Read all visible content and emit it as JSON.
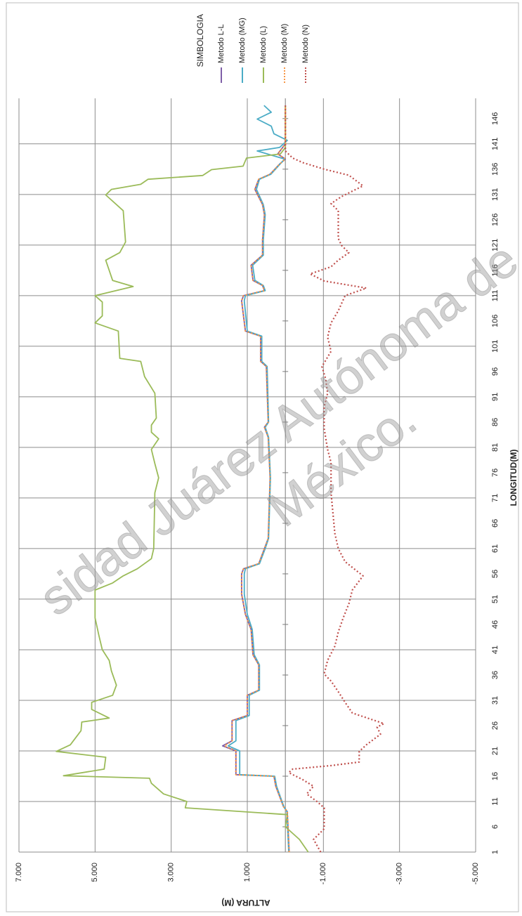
{
  "chart_data": {
    "type": "line",
    "orientation": "rotated",
    "legend_title": "SIMBOLOGIA",
    "x_label": "LONGITUD(M)",
    "y_label": "ALTURA (M)",
    "watermark": [
      "sidad Juárez Autónoma de",
      "México."
    ],
    "xlim": [
      1,
      150
    ],
    "xticks": [
      1,
      6,
      11,
      16,
      21,
      26,
      31,
      36,
      41,
      46,
      51,
      56,
      61,
      66,
      71,
      76,
      81,
      86,
      91,
      96,
      101,
      106,
      111,
      116,
      121,
      126,
      131,
      136,
      141,
      146
    ],
    "ylim": [
      -5000,
      7000
    ],
    "yticks": [
      {
        "value": 7000,
        "label": "7.000"
      },
      {
        "value": 5000,
        "label": "5.000"
      },
      {
        "value": 3000,
        "label": "3.000"
      },
      {
        "value": 1000,
        "label": "1.000"
      },
      {
        "value": -1000,
        "label": "-1.000"
      },
      {
        "value": -3000,
        "label": "-3.000"
      },
      {
        "value": -5000,
        "label": "-5.000"
      }
    ],
    "grid": true,
    "series": [
      {
        "name": "Metodo L-L",
        "color": "#7f5fa8",
        "dash": false,
        "x": [
          1,
          9,
          10,
          14,
          16,
          16.3,
          21,
          22,
          23,
          27,
          28,
          32,
          33,
          38,
          40,
          45,
          48,
          52,
          56,
          57,
          58,
          61,
          63,
          75,
          83,
          85,
          86,
          97,
          98,
          103,
          104,
          110,
          111,
          112,
          113,
          114,
          117,
          119,
          122,
          127,
          129,
          132,
          134,
          135,
          137,
          138,
          139,
          141,
          148.5
        ],
        "values": [
          -100,
          -50,
          50,
          250,
          300,
          1300,
          1300,
          1650,
          1400,
          1400,
          1000,
          1000,
          700,
          700,
          850,
          900,
          1050,
          1150,
          1150,
          1100,
          700,
          550,
          450,
          400,
          450,
          550,
          450,
          500,
          650,
          650,
          1050,
          1150,
          1100,
          550,
          600,
          850,
          900,
          600,
          600,
          550,
          600,
          800,
          700,
          400,
          150,
          0,
          200,
          0,
          0
        ]
      },
      {
        "name": "Metodo (MG)",
        "color": "#4bacc6",
        "dash": false,
        "x": [
          1,
          9,
          10,
          14,
          16,
          16.3,
          21,
          22,
          23,
          27,
          28,
          32,
          33,
          38,
          40,
          45,
          48,
          52,
          56,
          57,
          58,
          61,
          63,
          75,
          83,
          85,
          86,
          97,
          98,
          103,
          104,
          110,
          111,
          112,
          113,
          114,
          117,
          119,
          122,
          127,
          129,
          132,
          134,
          135,
          137,
          138,
          139.6,
          140.3,
          141.7,
          143,
          144.5,
          145.9,
          147.25,
          148.6
        ],
        "values": [
          -90,
          -40,
          40,
          230,
          280,
          1200,
          1200,
          1500,
          1300,
          1300,
          950,
          950,
          680,
          680,
          820,
          870,
          1000,
          1080,
          1080,
          1050,
          680,
          530,
          440,
          390,
          440,
          530,
          440,
          480,
          620,
          620,
          1000,
          1080,
          1050,
          530,
          580,
          800,
          860,
          580,
          580,
          530,
          580,
          760,
          680,
          380,
          140,
          20,
          740,
          150,
          -50,
          300,
          370,
          740,
          370,
          560
        ]
      },
      {
        "name": "Metodo (L)",
        "color": "#9bbb59",
        "dash": false,
        "x": [
          1,
          3.5,
          6,
          8.4,
          9.75,
          11,
          12.5,
          14.6,
          15.6,
          16.1,
          17.4,
          19.75,
          20.9,
          22.2,
          25,
          26.7,
          27.5,
          29.2,
          30.6,
          32,
          34,
          36.8,
          38.9,
          41,
          43.8,
          47.3,
          52.8,
          54.2,
          55.6,
          57,
          59,
          61,
          72,
          75,
          77.8,
          80.6,
          82.7,
          84,
          85.4,
          86.8,
          91.7,
          95,
          98,
          98.6,
          104,
          105.6,
          107,
          109.75,
          111,
          112.8,
          114,
          118,
          119.5,
          121.6,
          127.8,
          130.9,
          132,
          133,
          134,
          134.75,
          135.9,
          136.6,
          138.2,
          139,
          140.3,
          148.6
        ],
        "values": [
          -600,
          -370,
          0,
          -50,
          2630,
          2590,
          3200,
          3520,
          3570,
          5830,
          4760,
          4720,
          6020,
          5650,
          5370,
          5350,
          4630,
          5090,
          5090,
          4540,
          4440,
          4570,
          4630,
          4810,
          4900,
          5000,
          5000,
          4540,
          4260,
          3890,
          3520,
          3460,
          3430,
          3330,
          3430,
          3520,
          3330,
          3520,
          3520,
          3390,
          3430,
          3700,
          3800,
          4350,
          4390,
          5000,
          4810,
          4810,
          5000,
          4000,
          4540,
          4720,
          4350,
          4200,
          4260,
          4720,
          4570,
          3800,
          3610,
          2170,
          1940,
          1110,
          1020,
          130,
          0,
          0
        ]
      },
      {
        "name": "Metodo (M)",
        "color": "#f79646",
        "dash": true,
        "x": [
          1,
          9,
          10,
          14,
          16,
          16.3,
          21,
          22,
          23,
          27,
          28,
          32,
          33,
          38,
          40,
          45,
          48,
          52,
          56,
          57,
          58,
          61,
          63,
          75,
          83,
          85,
          86,
          97,
          98,
          103,
          104,
          110,
          111,
          112,
          113,
          114,
          117,
          119,
          122,
          127,
          129,
          132,
          134,
          135,
          137,
          138,
          139,
          141,
          148.5
        ],
        "values": [
          -100,
          -50,
          50,
          250,
          300,
          1300,
          1300,
          1600,
          1400,
          1400,
          1000,
          1000,
          700,
          700,
          850,
          900,
          1050,
          1150,
          1150,
          1100,
          700,
          550,
          450,
          400,
          450,
          550,
          450,
          500,
          650,
          650,
          1050,
          1150,
          1100,
          550,
          600,
          850,
          900,
          600,
          600,
          550,
          600,
          800,
          700,
          400,
          150,
          0,
          200,
          0,
          0
        ]
      },
      {
        "name": "Metodo (N)",
        "color": "#c0504d",
        "dash": true,
        "x": [
          1,
          3.5,
          5.6,
          9.75,
          11,
          12.5,
          14,
          15.3,
          16.7,
          17.4,
          18.1,
          18.8,
          20.9,
          22.2,
          24.3,
          25.7,
          26.4,
          28.5,
          30.6,
          32.7,
          34.8,
          36.2,
          38.9,
          41.7,
          44.5,
          47.3,
          50.1,
          52.8,
          55.6,
          58.4,
          61,
          64,
          72,
          78,
          80.6,
          84.7,
          89,
          91.7,
          94.5,
          97,
          97.7,
          100,
          102.8,
          105.6,
          108,
          111,
          112.5,
          113.9,
          115.3,
          116.7,
          118,
          119.5,
          120.9,
          122.3,
          125,
          127.8,
          129.2,
          130.6,
          132.7,
          134.8,
          136,
          137.3,
          138.2,
          139.6,
          148.6
        ],
        "values": [
          -930,
          -740,
          -1020,
          -1020,
          -830,
          -560,
          -740,
          -460,
          -90,
          -190,
          -1200,
          -1940,
          -1940,
          -2130,
          -2500,
          -2410,
          -2590,
          -1760,
          -1570,
          -1390,
          -1200,
          -1020,
          -1110,
          -1300,
          -1390,
          -1520,
          -1670,
          -1760,
          -2040,
          -1570,
          -1390,
          -1300,
          -1200,
          -1200,
          -1110,
          -1020,
          -1020,
          -1110,
          -1060,
          -960,
          -1020,
          -1200,
          -1110,
          -1200,
          -1390,
          -1570,
          -2130,
          -1020,
          -650,
          -1200,
          -1390,
          -1670,
          -1480,
          -1390,
          -1390,
          -1390,
          -1200,
          -1480,
          -2040,
          -1670,
          -1020,
          -460,
          -190,
          0,
          0
        ]
      }
    ]
  }
}
